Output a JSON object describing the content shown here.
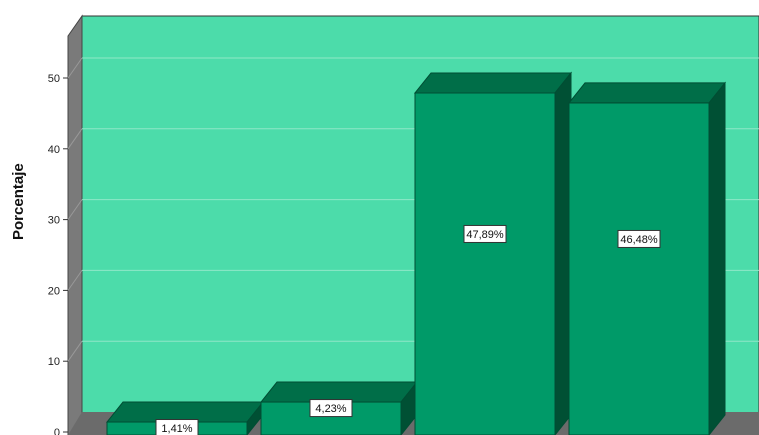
{
  "chart_data": {
    "type": "bar",
    "categories": [
      "",
      "",
      "",
      ""
    ],
    "values": [
      1.41,
      4.23,
      47.89,
      46.48
    ],
    "value_labels": [
      "1,41%",
      "4,23%",
      "47,89%",
      "46,48%"
    ],
    "ylabel": "Porcentaje",
    "xlabel": "",
    "ylim": [
      0,
      55
    ],
    "yticks": [
      "0",
      "10",
      "20",
      "30",
      "40",
      "50"
    ],
    "grid": true,
    "colors": {
      "plot_background": "#4cdcaa",
      "bar_front": "#009a68",
      "bar_top": "#006e48",
      "bar_side": "#005034",
      "wall_left": "#7a7a7a",
      "floor": "#6b6b6b",
      "gridline": "#8fe7c7"
    }
  }
}
